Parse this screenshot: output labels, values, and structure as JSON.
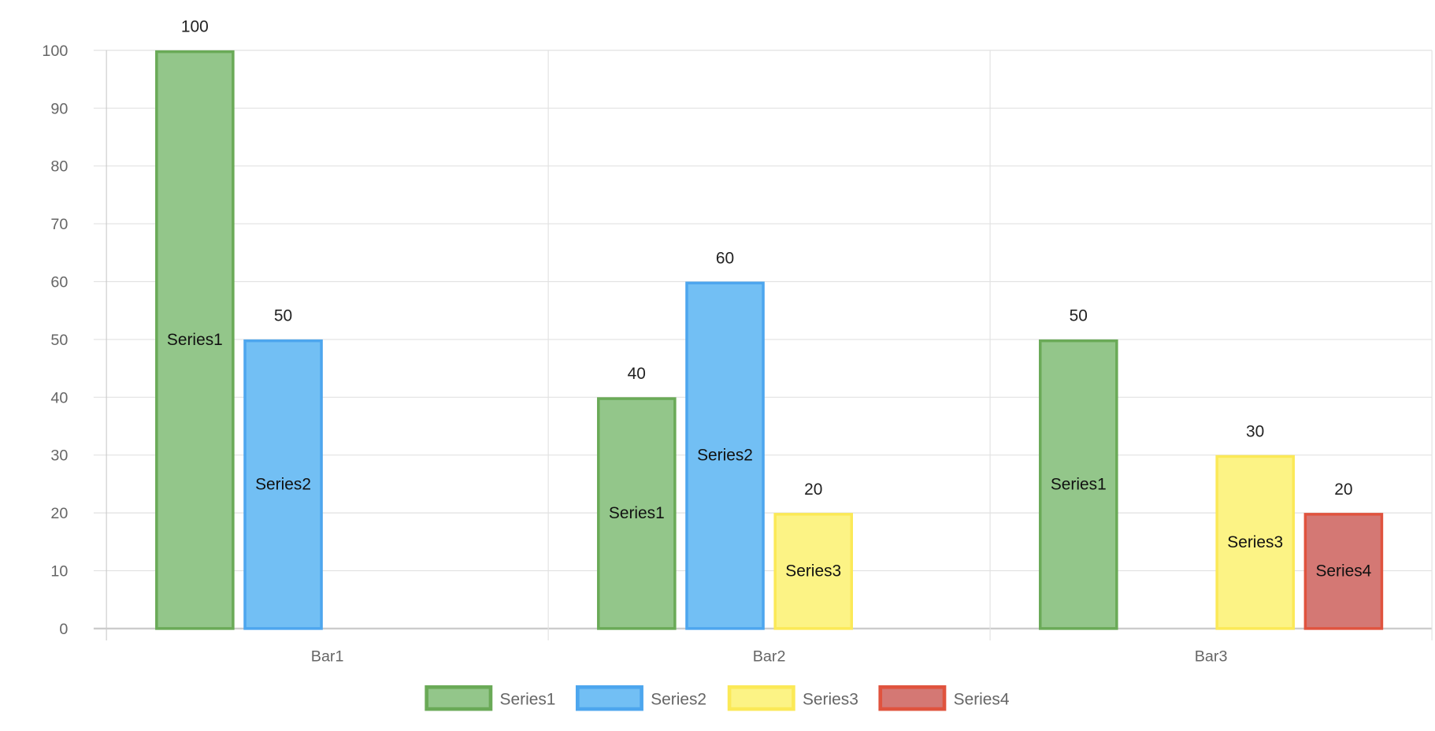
{
  "chart_data": {
    "type": "bar",
    "categories": [
      "Bar1",
      "Bar2",
      "Bar3"
    ],
    "series": [
      {
        "name": "Series1",
        "values": [
          100,
          40,
          50
        ],
        "border": "#6aaa57",
        "fill": "#93c68a"
      },
      {
        "name": "Series2",
        "values": [
          50,
          60,
          null
        ],
        "border": "#4da6ee",
        "fill": "#72bff4"
      },
      {
        "name": "Series3",
        "values": [
          null,
          20,
          30
        ],
        "border": "#fbe957",
        "fill": "#fcf385"
      },
      {
        "name": "Series4",
        "values": [
          null,
          null,
          20
        ],
        "border": "#e0533e",
        "fill": "#d47874"
      }
    ],
    "ylim": [
      0,
      100
    ],
    "yticks": [
      0,
      10,
      20,
      30,
      40,
      50,
      60,
      70,
      80,
      90,
      100
    ],
    "grid": true,
    "legend": "bottom",
    "data_labels": "value above bar, series name inside bar"
  }
}
